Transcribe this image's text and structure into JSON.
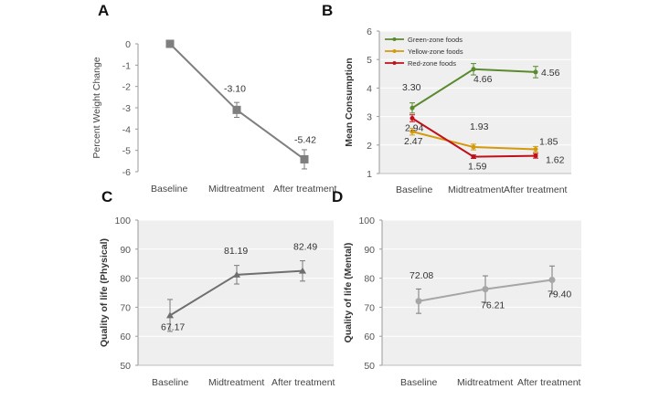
{
  "chart_data": [
    {
      "panel": "A",
      "type": "line",
      "categories": [
        "Baseline",
        "Midtreatment",
        "After treatment"
      ],
      "ylabel": "Percent Weight Change",
      "ylim": [
        -6,
        0
      ],
      "yticks": [
        0,
        -1,
        -2,
        -3,
        -4,
        -5,
        -6
      ],
      "grid": false,
      "series": [
        {
          "name": "Percent Weight Change",
          "color": "#7f7f7f",
          "marker": "square",
          "values": [
            0,
            -3.1,
            -5.42
          ],
          "errors": [
            0,
            0.35,
            0.45
          ],
          "labels": [
            "",
            "-3.10",
            "-5.42"
          ]
        }
      ]
    },
    {
      "panel": "B",
      "type": "line",
      "categories": [
        "Baseline",
        "Midtreatment",
        "After treatment"
      ],
      "ylabel": "Mean Consumption",
      "ylim": [
        1,
        6
      ],
      "yticks": [
        1,
        2,
        3,
        4,
        5,
        6
      ],
      "grid": true,
      "legend": "top-left",
      "series": [
        {
          "name": "Green-zone foods",
          "color": "#5b8a2e",
          "values": [
            3.3,
            4.66,
            4.56
          ],
          "errors": [
            0.18,
            0.2,
            0.2
          ],
          "labels": [
            "3.30",
            "4.66",
            "4.56"
          ]
        },
        {
          "name": "Yellow-zone foods",
          "color": "#d49a0c",
          "values": [
            2.47,
            1.93,
            1.85
          ],
          "errors": [
            0.12,
            0.1,
            0.1
          ],
          "labels": [
            "2.47",
            "1.93",
            "1.85"
          ]
        },
        {
          "name": "Red-zone foods",
          "color": "#c0101a",
          "values": [
            2.94,
            1.59,
            1.62
          ],
          "errors": [
            0.12,
            0.06,
            0.08
          ],
          "labels": [
            "2.94",
            "1.59",
            "1.62"
          ]
        }
      ]
    },
    {
      "panel": "C",
      "type": "line",
      "categories": [
        "Baseline",
        "Midtreatment",
        "After treatment"
      ],
      "ylabel": "Quality of life (Physical)",
      "ylim": [
        50,
        100
      ],
      "yticks": [
        50,
        60,
        70,
        80,
        90,
        100
      ],
      "grid": true,
      "series": [
        {
          "name": "Physical",
          "color": "#6f6f6f",
          "marker": "triangle",
          "values": [
            67.17,
            81.19,
            82.49
          ],
          "errors": [
            5.5,
            3.2,
            3.5
          ],
          "labels": [
            "67.17",
            "81.19",
            "82.49"
          ]
        }
      ]
    },
    {
      "panel": "D",
      "type": "line",
      "categories": [
        "Baseline",
        "Midtreatment",
        "After treatment"
      ],
      "ylabel": "Quality of life (Mental)",
      "ylim": [
        50,
        100
      ],
      "yticks": [
        50,
        60,
        70,
        80,
        90,
        100
      ],
      "grid": true,
      "series": [
        {
          "name": "Mental",
          "color": "#a6a6a6",
          "marker": "circle",
          "values": [
            72.08,
            76.21,
            79.4
          ],
          "errors": [
            4.2,
            4.6,
            4.8
          ],
          "labels": [
            "72.08",
            "76.21",
            "79.40"
          ]
        }
      ]
    }
  ]
}
